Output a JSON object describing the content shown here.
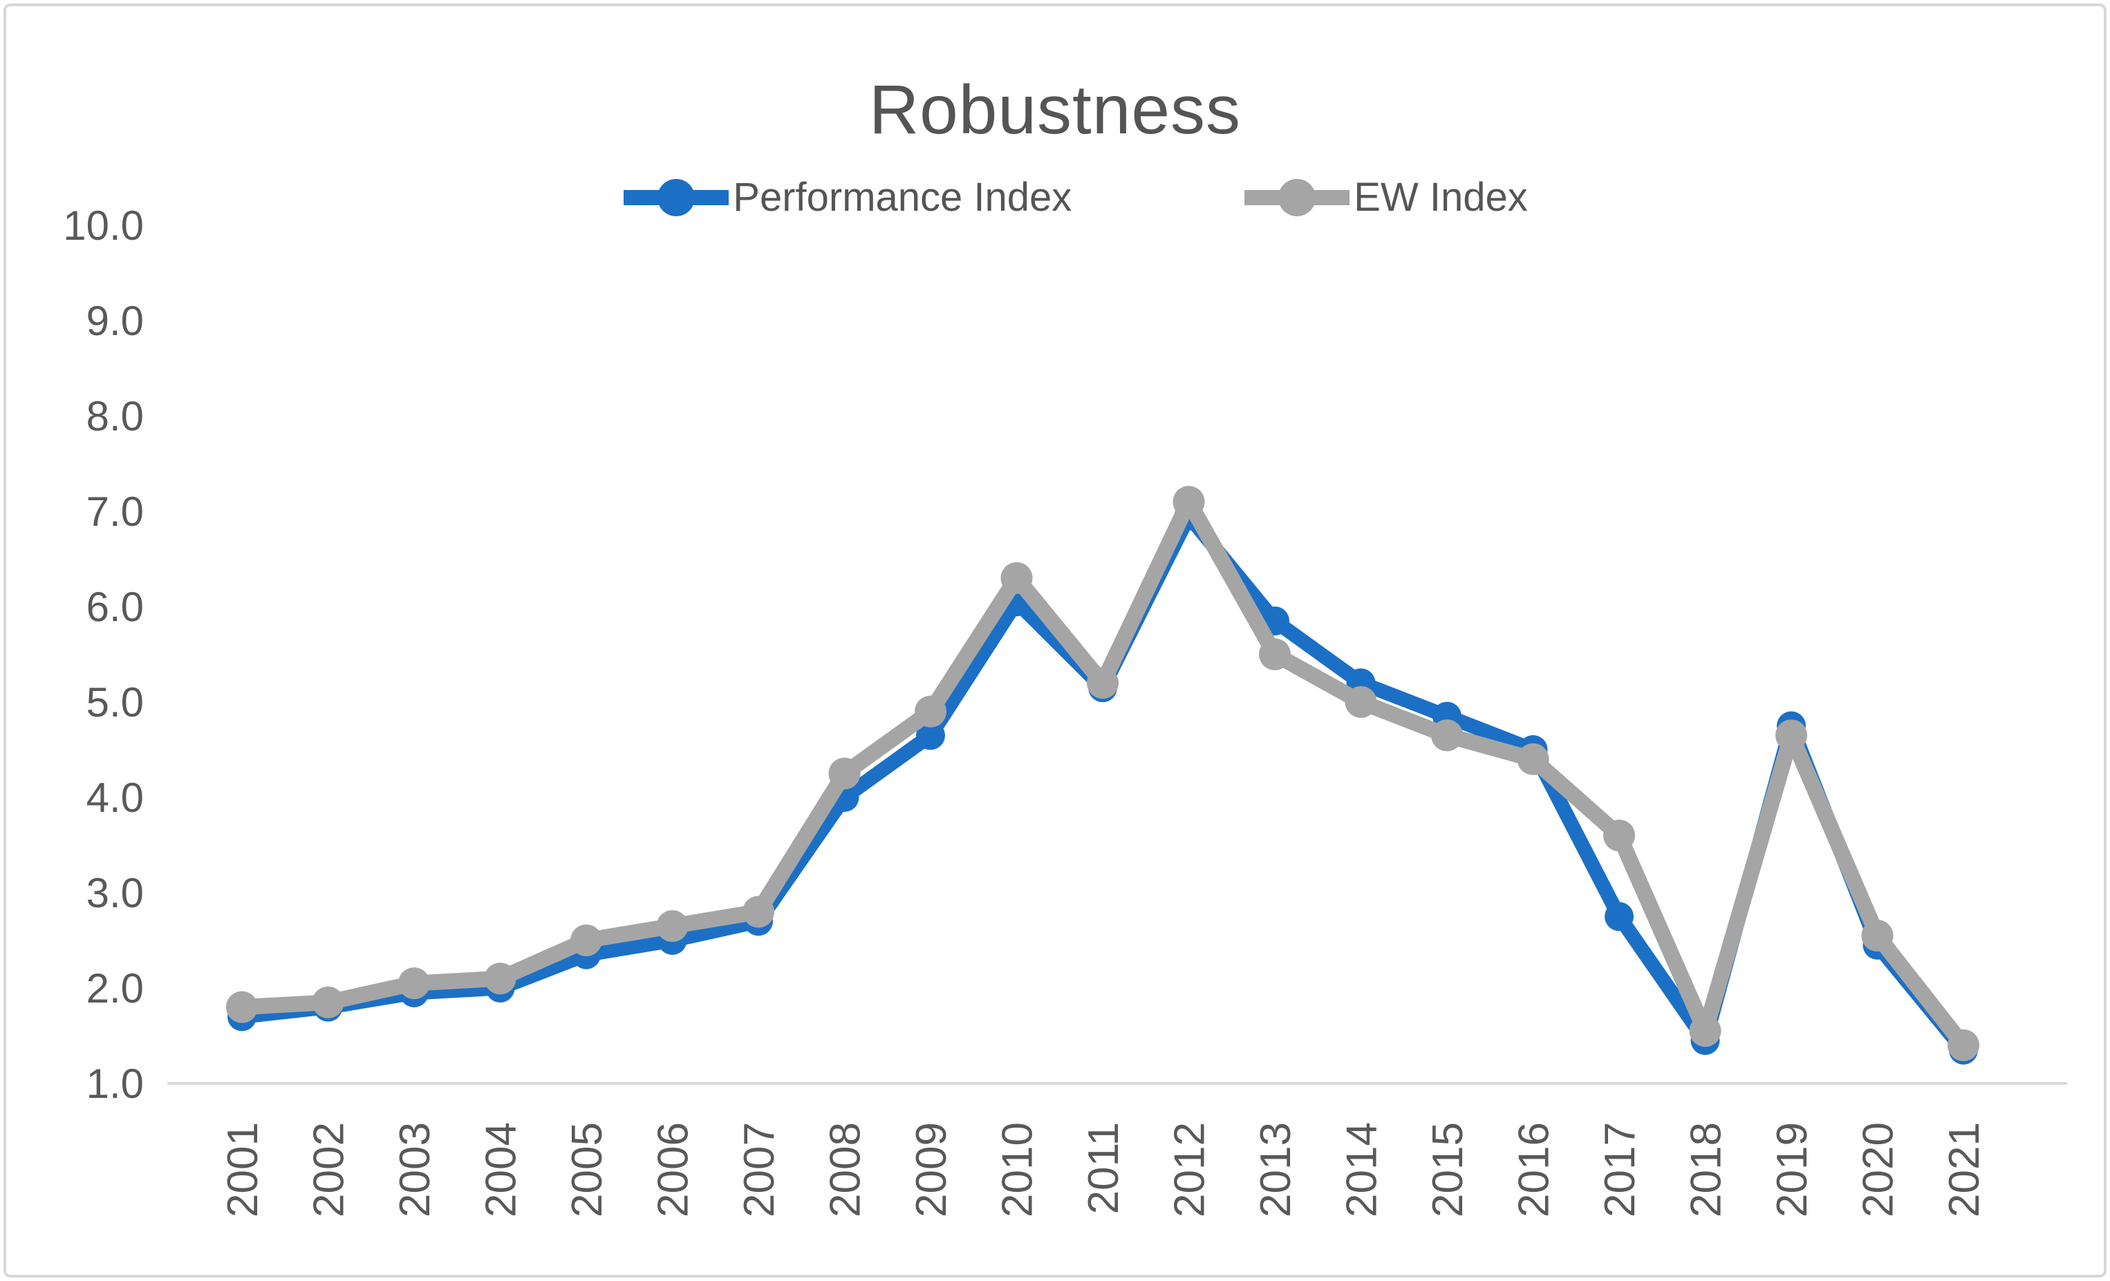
{
  "title": "Robustness",
  "legend": {
    "items": [
      {
        "label": "Performance Index",
        "color": "#1b70c6"
      },
      {
        "label": "EW Index",
        "color": "#a5a5a5"
      }
    ]
  },
  "colors": {
    "performance_blue": "#1b70c6",
    "ew_gray": "#a5a5a5",
    "axis_line": "#d9d9d9",
    "tick_text": "#595959",
    "frame_border": "#d8d8d8",
    "background": "#ffffff"
  },
  "chart_data": {
    "type": "line",
    "title": "Robustness",
    "categories": [
      "2001",
      "2002",
      "2003",
      "2004",
      "2005",
      "2006",
      "2007",
      "2008",
      "2009",
      "2010",
      "2011",
      "2012",
      "2013",
      "2014",
      "2015",
      "2016",
      "2017",
      "2018",
      "2019",
      "2020",
      "2021"
    ],
    "series": [
      {
        "name": "Performance Index",
        "color": "#1b70c6",
        "values": [
          1.7,
          1.8,
          1.95,
          2.0,
          2.35,
          2.5,
          2.7,
          4.0,
          4.65,
          6.05,
          5.15,
          6.95,
          5.85,
          5.2,
          4.85,
          4.5,
          2.75,
          1.45,
          4.75,
          2.45,
          1.35
        ]
      },
      {
        "name": "EW Index",
        "color": "#a5a5a5",
        "values": [
          1.8,
          1.85,
          2.05,
          2.1,
          2.5,
          2.65,
          2.8,
          4.25,
          4.9,
          6.3,
          5.2,
          7.1,
          5.5,
          5.0,
          4.65,
          4.4,
          3.6,
          1.55,
          4.65,
          2.55,
          1.4
        ]
      }
    ],
    "xlabel": "",
    "ylabel": "",
    "ylim": [
      1.0,
      10.0
    ],
    "ytick_labels": [
      "10.0",
      "9.0",
      "8.0",
      "7.0",
      "6.0",
      "5.0",
      "4.0",
      "3.0",
      "2.0",
      "1.0"
    ],
    "x_tick_rotation": -90,
    "grid": false,
    "legend_position": "top",
    "marker": "circle",
    "draw_order": [
      "Performance Index",
      "EW Index"
    ]
  }
}
